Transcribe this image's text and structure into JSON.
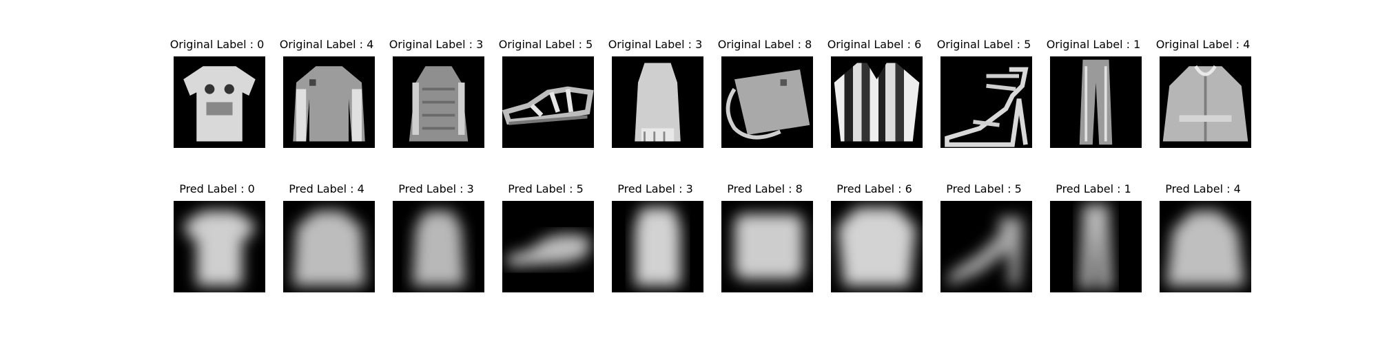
{
  "top_row": [
    {
      "title": "Original Label : 0",
      "icon": "tshirt-image"
    },
    {
      "title": "Original Label : 4",
      "icon": "pullover-image"
    },
    {
      "title": "Original Label : 3",
      "icon": "dress-image"
    },
    {
      "title": "Original Label : 5",
      "icon": "sandal-image"
    },
    {
      "title": "Original Label : 3",
      "icon": "dress-image"
    },
    {
      "title": "Original Label : 8",
      "icon": "bag-image"
    },
    {
      "title": "Original Label : 6",
      "icon": "shirt-image"
    },
    {
      "title": "Original Label : 5",
      "icon": "heel-sandal-image"
    },
    {
      "title": "Original Label : 1",
      "icon": "trouser-image"
    },
    {
      "title": "Original Label : 4",
      "icon": "coat-image"
    }
  ],
  "bottom_row": [
    {
      "title": "Pred Label : 0",
      "icon": "blurry-tshirt-image"
    },
    {
      "title": "Pred Label : 4",
      "icon": "blurry-pullover-image"
    },
    {
      "title": "Pred Label : 3",
      "icon": "blurry-dress-image"
    },
    {
      "title": "Pred Label : 5",
      "icon": "blurry-sandal-image"
    },
    {
      "title": "Pred Label : 3",
      "icon": "blurry-dress-image"
    },
    {
      "title": "Pred Label : 8",
      "icon": "blurry-bag-image"
    },
    {
      "title": "Pred Label : 6",
      "icon": "blurry-shirt-image"
    },
    {
      "title": "Pred Label : 5",
      "icon": "blurry-heel-image"
    },
    {
      "title": "Pred Label : 1",
      "icon": "blurry-trouser-image"
    },
    {
      "title": "Pred Label : 4",
      "icon": "blurry-coat-image"
    }
  ]
}
